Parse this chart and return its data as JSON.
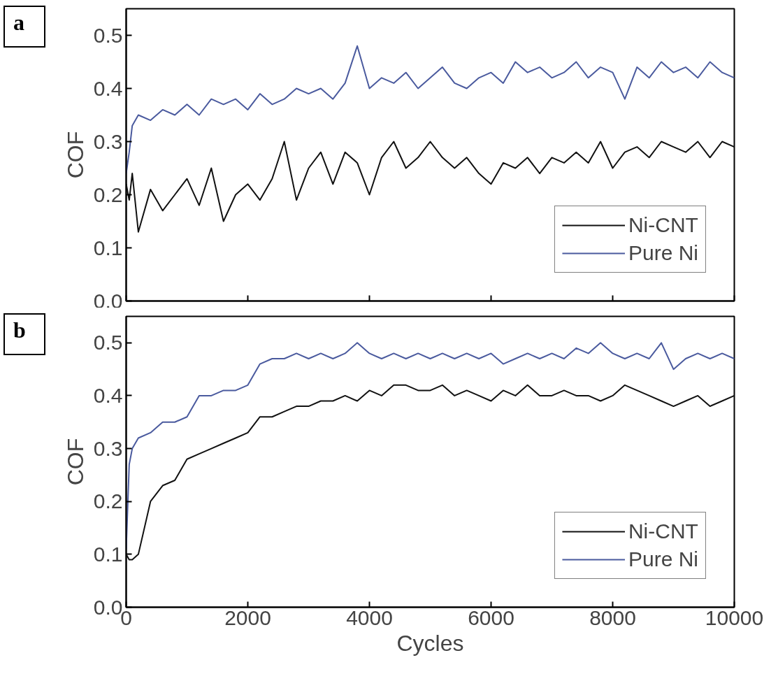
{
  "chart_data": [
    {
      "type": "line",
      "annotations": [
        "a"
      ],
      "ylabel": "COF",
      "x": [
        0,
        50,
        100,
        200,
        400,
        600,
        800,
        1000,
        1200,
        1400,
        1600,
        1800,
        2000,
        2200,
        2400,
        2600,
        2800,
        3000,
        3200,
        3400,
        3600,
        3800,
        4000,
        4200,
        4400,
        4600,
        4800,
        5000,
        5200,
        5400,
        5600,
        5800,
        6000,
        6200,
        6400,
        6600,
        6800,
        7000,
        7200,
        7400,
        7600,
        7800,
        8000,
        8200,
        8400,
        8600,
        8800,
        9000,
        9200,
        9400,
        9600,
        9800,
        10000
      ],
      "series": [
        {
          "name": "Ni-CNT",
          "color": "#111111",
          "values": [
            0.22,
            0.19,
            0.24,
            0.13,
            0.21,
            0.17,
            0.2,
            0.23,
            0.18,
            0.25,
            0.15,
            0.2,
            0.22,
            0.19,
            0.23,
            0.3,
            0.19,
            0.25,
            0.28,
            0.22,
            0.28,
            0.26,
            0.2,
            0.27,
            0.3,
            0.25,
            0.27,
            0.3,
            0.27,
            0.25,
            0.27,
            0.24,
            0.22,
            0.26,
            0.25,
            0.27,
            0.24,
            0.27,
            0.26,
            0.28,
            0.26,
            0.3,
            0.25,
            0.28,
            0.29,
            0.27,
            0.3,
            0.29,
            0.28,
            0.3,
            0.27,
            0.3,
            0.29
          ]
        },
        {
          "name": "Pure Ni",
          "color": "#4a5a9e",
          "values": [
            0.24,
            0.28,
            0.33,
            0.35,
            0.34,
            0.36,
            0.35,
            0.37,
            0.35,
            0.38,
            0.37,
            0.38,
            0.36,
            0.39,
            0.37,
            0.38,
            0.4,
            0.39,
            0.4,
            0.38,
            0.41,
            0.48,
            0.4,
            0.42,
            0.41,
            0.43,
            0.4,
            0.42,
            0.44,
            0.41,
            0.4,
            0.42,
            0.43,
            0.41,
            0.45,
            0.43,
            0.44,
            0.42,
            0.43,
            0.45,
            0.42,
            0.44,
            0.43,
            0.38,
            0.44,
            0.42,
            0.45,
            0.43,
            0.44,
            0.42,
            0.45,
            0.43,
            0.42
          ]
        }
      ],
      "xlim": [
        0,
        10000
      ],
      "xticks": [
        0,
        2000,
        4000,
        6000,
        8000,
        10000
      ],
      "ylim": [
        0,
        0.55
      ],
      "yticks": [
        {
          "value": 0,
          "label": "0.0"
        },
        0.1,
        0.2,
        0.3,
        0.4,
        0.5
      ],
      "tick_labels": "y",
      "legend": "bottom right",
      "line_style": "solid"
    },
    {
      "type": "line",
      "annotations": [
        "b"
      ],
      "ylabel": "COF",
      "xlabel": "Cycles",
      "x": [
        0,
        50,
        100,
        200,
        400,
        600,
        800,
        1000,
        1200,
        1400,
        1600,
        1800,
        2000,
        2200,
        2400,
        2600,
        2800,
        3000,
        3200,
        3400,
        3600,
        3800,
        4000,
        4200,
        4400,
        4600,
        4800,
        5000,
        5200,
        5400,
        5600,
        5800,
        6000,
        6200,
        6400,
        6600,
        6800,
        7000,
        7200,
        7400,
        7600,
        7800,
        8000,
        8200,
        8400,
        8600,
        8800,
        9000,
        9200,
        9400,
        9600,
        9800,
        10000
      ],
      "series": [
        {
          "name": "Ni-CNT",
          "color": "#111111",
          "values": [
            0.1,
            0.09,
            0.09,
            0.1,
            0.2,
            0.23,
            0.24,
            0.28,
            0.29,
            0.3,
            0.31,
            0.32,
            0.33,
            0.36,
            0.36,
            0.37,
            0.38,
            0.38,
            0.39,
            0.39,
            0.4,
            0.39,
            0.41,
            0.4,
            0.42,
            0.42,
            0.41,
            0.41,
            0.42,
            0.4,
            0.41,
            0.4,
            0.39,
            0.41,
            0.4,
            0.42,
            0.4,
            0.4,
            0.41,
            0.4,
            0.4,
            0.39,
            0.4,
            0.42,
            0.41,
            0.4,
            0.39,
            0.38,
            0.39,
            0.4,
            0.38,
            0.39,
            0.4
          ]
        },
        {
          "name": "Pure Ni",
          "color": "#4a5a9e",
          "values": [
            0.11,
            0.27,
            0.3,
            0.32,
            0.33,
            0.35,
            0.35,
            0.36,
            0.4,
            0.4,
            0.41,
            0.41,
            0.42,
            0.46,
            0.47,
            0.47,
            0.48,
            0.47,
            0.48,
            0.47,
            0.48,
            0.5,
            0.48,
            0.47,
            0.48,
            0.47,
            0.48,
            0.47,
            0.48,
            0.47,
            0.48,
            0.47,
            0.48,
            0.46,
            0.47,
            0.48,
            0.47,
            0.48,
            0.47,
            0.49,
            0.48,
            0.5,
            0.48,
            0.47,
            0.48,
            0.47,
            0.5,
            0.45,
            0.47,
            0.48,
            0.47,
            0.48,
            0.47
          ]
        }
      ],
      "xlim": [
        0,
        10000
      ],
      "xticks": [
        0,
        2000,
        4000,
        6000,
        8000,
        10000
      ],
      "ylim": [
        0,
        0.55
      ],
      "yticks": [
        {
          "value": 0,
          "label": "0.0"
        },
        0.1,
        0.2,
        0.3,
        0.4,
        0.5
      ],
      "legend": "bottom right",
      "line_style": "solid"
    }
  ]
}
